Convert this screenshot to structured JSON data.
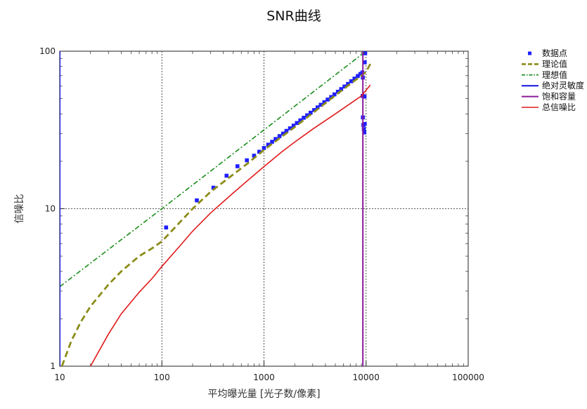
{
  "chart_data": {
    "type": "line",
    "title": "SNR曲线",
    "xlabel": "平均曝光量 [光子数/像素]",
    "ylabel": "信噪比",
    "xscale": "log",
    "yscale": "log",
    "xlim": [
      10,
      100000
    ],
    "ylim": [
      1,
      100
    ],
    "x_ticks": [
      "10",
      "100",
      "1000",
      "10000",
      "100000"
    ],
    "y_ticks": [
      "1",
      "10",
      "100"
    ],
    "grid": "major-dotted",
    "legend_position": "right",
    "legend": [
      "数据点",
      "理论值",
      "理想值",
      "绝对灵敏度",
      "饱和容量",
      "总信噪比"
    ],
    "series": [
      {
        "name": "数据点",
        "kind": "scatter",
        "color": "#1f1fff",
        "points": [
          [
            110,
            7.6
          ],
          [
            220,
            11.3
          ],
          [
            320,
            13.6
          ],
          [
            430,
            16.2
          ],
          [
            550,
            18.6
          ],
          [
            680,
            20.3
          ],
          [
            800,
            21.7
          ],
          [
            900,
            23.0
          ],
          [
            1000,
            24.3
          ],
          [
            1100,
            25.5
          ],
          [
            1200,
            26.6
          ],
          [
            1300,
            27.7
          ],
          [
            1420,
            28.9
          ],
          [
            1540,
            30.0
          ],
          [
            1660,
            31.2
          ],
          [
            1800,
            32.4
          ],
          [
            1950,
            33.7
          ],
          [
            2100,
            35.0
          ],
          [
            2270,
            36.4
          ],
          [
            2450,
            37.8
          ],
          [
            2650,
            39.2
          ],
          [
            2860,
            40.7
          ],
          [
            3100,
            42.3
          ],
          [
            3350,
            44.0
          ],
          [
            3600,
            45.7
          ],
          [
            3900,
            47.5
          ],
          [
            4200,
            49.3
          ],
          [
            4550,
            51.2
          ],
          [
            4900,
            53.2
          ],
          [
            5300,
            55.3
          ],
          [
            5700,
            57.5
          ],
          [
            6150,
            59.7
          ],
          [
            6650,
            62.0
          ],
          [
            7150,
            64.5
          ],
          [
            7700,
            67.0
          ],
          [
            8300,
            69.6
          ],
          [
            8800,
            71.7
          ],
          [
            9200,
            73.3
          ],
          [
            9300,
            68.0
          ],
          [
            9250,
            52.0
          ],
          [
            9300,
            38.0
          ],
          [
            9400,
            34.0
          ],
          [
            9500,
            32.0
          ],
          [
            9600,
            30.5
          ],
          [
            9700,
            34.5
          ],
          [
            9650,
            51.5
          ],
          [
            9700,
            85.0
          ],
          [
            9800,
            97.0
          ]
        ]
      },
      {
        "name": "理论值",
        "kind": "dashed-line",
        "color": "#8c8c1a",
        "points": [
          [
            10.5,
            1.0
          ],
          [
            13,
            1.45
          ],
          [
            16,
            1.9
          ],
          [
            20,
            2.4
          ],
          [
            30,
            3.3
          ],
          [
            40,
            4.0
          ],
          [
            60,
            5.0
          ],
          [
            80,
            5.6
          ],
          [
            100,
            6.2
          ],
          [
            150,
            8.2
          ],
          [
            200,
            10.0
          ],
          [
            300,
            12.8
          ],
          [
            500,
            16.5
          ],
          [
            700,
            19.5
          ],
          [
            1000,
            23.6
          ],
          [
            2000,
            33.0
          ],
          [
            3000,
            40.5
          ],
          [
            5000,
            52.5
          ],
          [
            7000,
            62.0
          ],
          [
            9000,
            70.0
          ],
          [
            10000,
            74.0
          ],
          [
            11000,
            83.0
          ]
        ]
      },
      {
        "name": "理想值",
        "kind": "dashdot-line",
        "color": "#1a8c1a",
        "points": [
          [
            10,
            3.2
          ],
          [
            100,
            10.0
          ],
          [
            11000,
            105.0
          ]
        ]
      },
      {
        "name": "绝对灵敏度",
        "kind": "vline",
        "color": "#1010e0",
        "x": 10
      },
      {
        "name": "饱和容量",
        "kind": "vline",
        "color": "#8a1a9a",
        "x": 9300
      },
      {
        "name": "总信噪比",
        "kind": "line",
        "color": "#e01a1a",
        "points": [
          [
            20,
            1.0
          ],
          [
            30,
            1.6
          ],
          [
            40,
            2.15
          ],
          [
            60,
            2.95
          ],
          [
            80,
            3.6
          ],
          [
            100,
            4.3
          ],
          [
            150,
            5.8
          ],
          [
            200,
            7.2
          ],
          [
            300,
            9.4
          ],
          [
            500,
            12.6
          ],
          [
            700,
            15.2
          ],
          [
            1000,
            18.5
          ],
          [
            1500,
            23.0
          ],
          [
            2000,
            26.5
          ],
          [
            3000,
            32.0
          ],
          [
            5000,
            40.0
          ],
          [
            7000,
            46.5
          ],
          [
            9000,
            52.0
          ],
          [
            11000,
            61.0
          ]
        ]
      }
    ]
  }
}
